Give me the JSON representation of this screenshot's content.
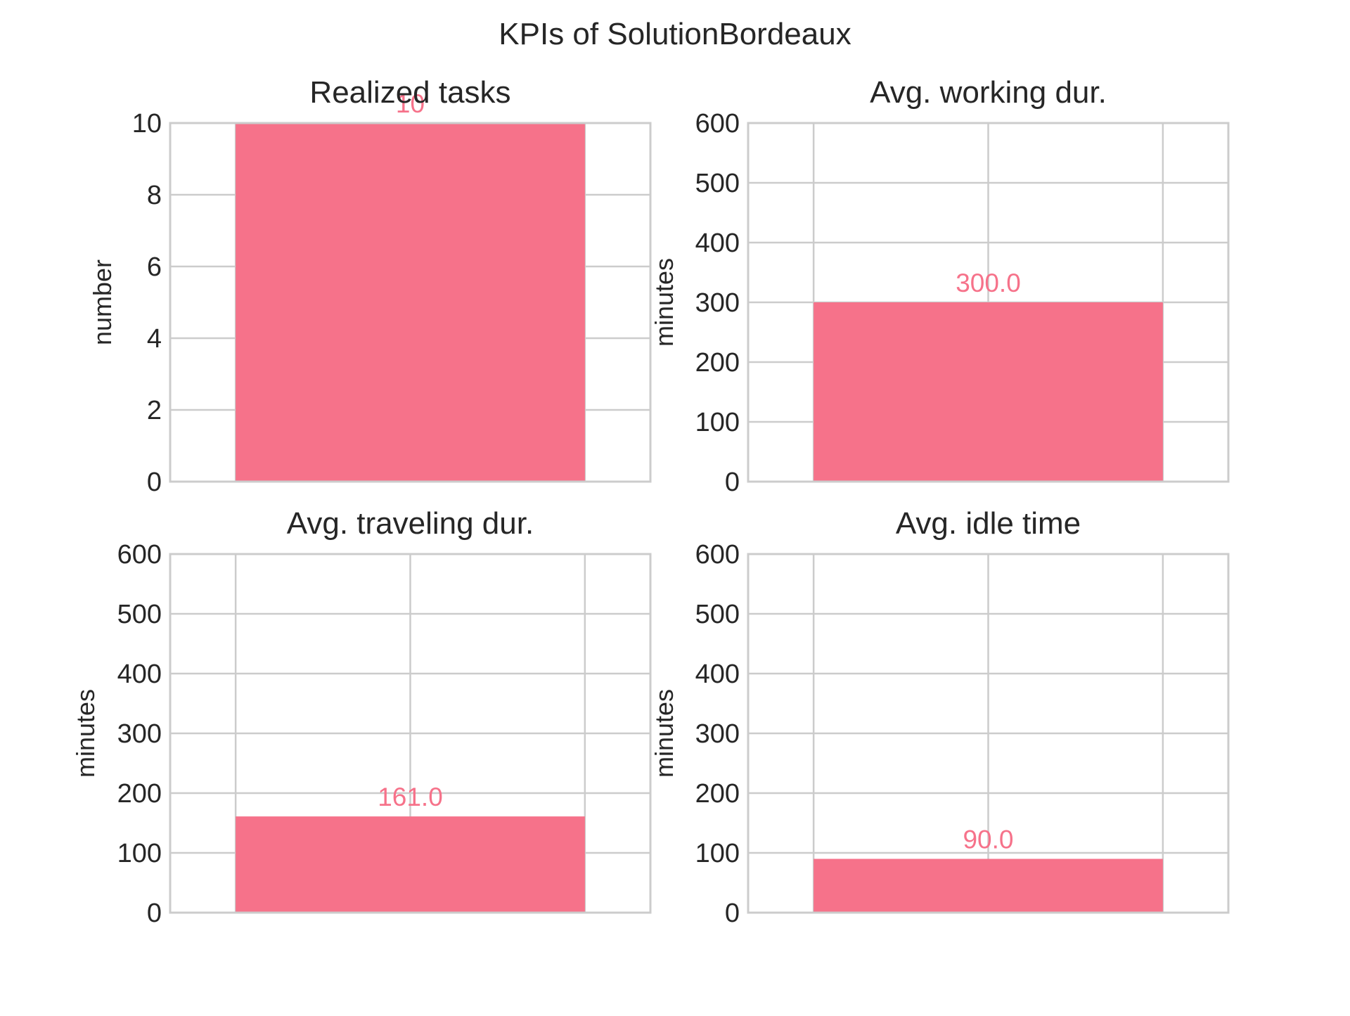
{
  "figure": {
    "title": "KPIs of SolutionBordeaux"
  },
  "colors": {
    "bar": "#f6728a",
    "grid": "#cccccc",
    "frame": "#cccccc",
    "text": "#262626"
  },
  "chart_data": [
    {
      "type": "bar",
      "title": "Realized tasks",
      "xlabel": "",
      "ylabel": "number",
      "values": [
        10
      ],
      "value_labels": [
        "10"
      ],
      "ylim": [
        0,
        10
      ],
      "yticks": [
        0,
        2,
        4,
        6,
        8,
        10
      ],
      "ytick_labels": [
        "0",
        "2",
        "4",
        "6",
        "8",
        "10"
      ],
      "grid": true
    },
    {
      "type": "bar",
      "title": "Avg. working dur.",
      "xlabel": "",
      "ylabel": "minutes",
      "values": [
        300.0
      ],
      "value_labels": [
        "300.0"
      ],
      "ylim": [
        0,
        600
      ],
      "yticks": [
        0,
        100,
        200,
        300,
        400,
        500,
        600
      ],
      "ytick_labels": [
        "0",
        "100",
        "200",
        "300",
        "400",
        "500",
        "600"
      ],
      "grid": true
    },
    {
      "type": "bar",
      "title": "Avg. traveling dur.",
      "xlabel": "",
      "ylabel": "minutes",
      "values": [
        161.0
      ],
      "value_labels": [
        "161.0"
      ],
      "ylim": [
        0,
        600
      ],
      "yticks": [
        0,
        100,
        200,
        300,
        400,
        500,
        600
      ],
      "ytick_labels": [
        "0",
        "100",
        "200",
        "300",
        "400",
        "500",
        "600"
      ],
      "grid": true
    },
    {
      "type": "bar",
      "title": "Avg. idle time",
      "xlabel": "",
      "ylabel": "minutes",
      "values": [
        90.0
      ],
      "value_labels": [
        "90.0"
      ],
      "ylim": [
        0,
        600
      ],
      "yticks": [
        0,
        100,
        200,
        300,
        400,
        500,
        600
      ],
      "ytick_labels": [
        "0",
        "100",
        "200",
        "300",
        "400",
        "500",
        "600"
      ],
      "grid": true
    }
  ]
}
